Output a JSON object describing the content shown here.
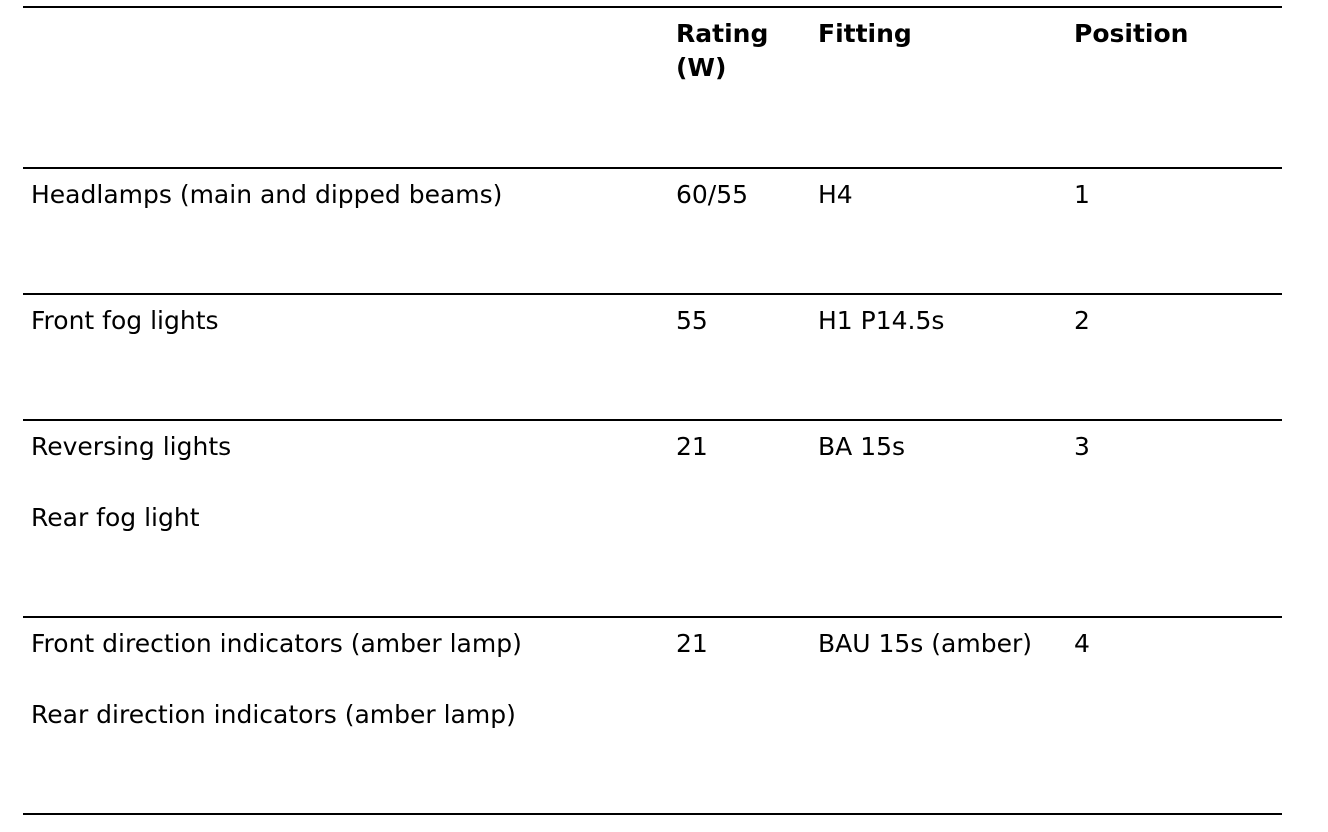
{
  "table": {
    "headers": {
      "item": "",
      "rating": "Rating (W)",
      "fitting": "Fitting",
      "position": "Position"
    },
    "rows": [
      {
        "items": [
          "Headlamps (main and dipped beams)"
        ],
        "rating": "60/55",
        "fitting": "H4",
        "position": "1"
      },
      {
        "items": [
          "Front fog lights"
        ],
        "rating": "55",
        "fitting": "H1 P14.5s",
        "position": "2"
      },
      {
        "items": [
          "Reversing lights",
          "Rear fog light"
        ],
        "rating": "21",
        "fitting": "BA 15s",
        "position": "3"
      },
      {
        "items": [
          "Front direction indicators (amber lamp)",
          "Rear direction indicators (amber lamp)"
        ],
        "rating": "21",
        "fitting": "BAU 15s (amber)",
        "position": "4"
      }
    ]
  }
}
